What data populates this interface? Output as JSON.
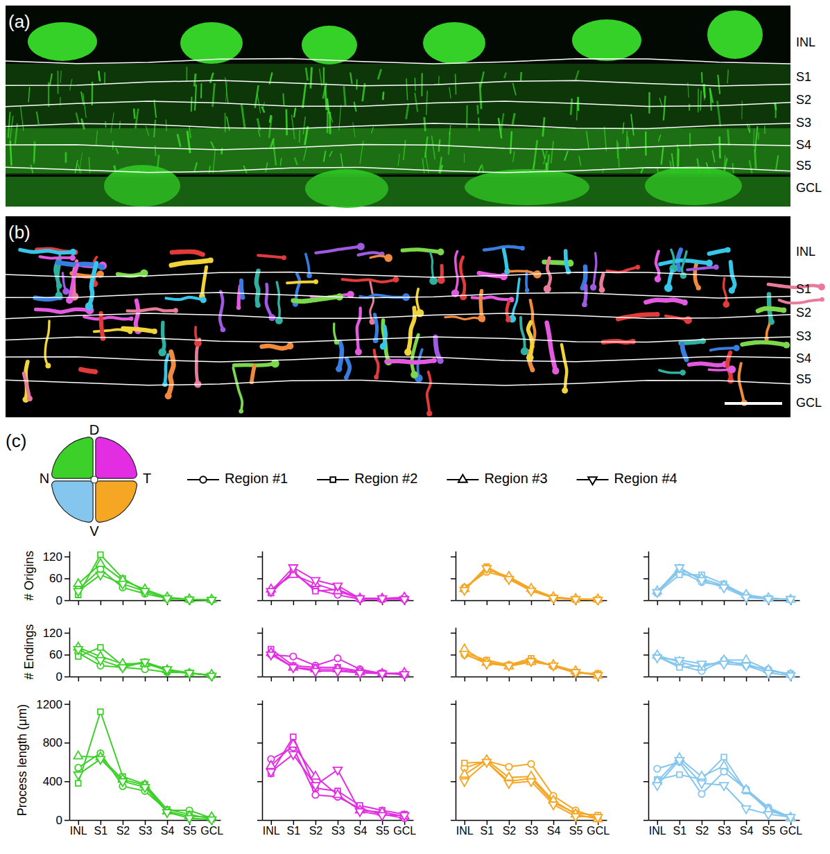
{
  "figure": {
    "panel_labels": [
      "(a)",
      "(b)",
      "(c)"
    ],
    "layers": [
      "INL",
      "S1",
      "S2",
      "S3",
      "S4",
      "S5",
      "GCL"
    ],
    "retina_labels": [
      "D",
      "N",
      "T",
      "V"
    ]
  },
  "chart_data": [
    {
      "type": "line",
      "color": "#3ed02a",
      "categories": [
        "INL",
        "S1",
        "S2",
        "S3",
        "S4",
        "S5",
        "GCL"
      ],
      "ylabel": "# Origins",
      "ylim": [
        0,
        135
      ],
      "yticks": [
        0,
        60,
        120
      ],
      "tick_labels": "y",
      "series": [
        {
          "name": "Region #1",
          "marker": "circle",
          "values": [
            30,
            85,
            35,
            18,
            5,
            2,
            1
          ]
        },
        {
          "name": "Region #2",
          "marker": "square",
          "values": [
            15,
            125,
            60,
            25,
            5,
            2,
            1
          ]
        },
        {
          "name": "Region #3",
          "marker": "triangle-up",
          "values": [
            45,
            100,
            55,
            30,
            8,
            3,
            2
          ]
        },
        {
          "name": "Region #4",
          "marker": "triangle-down",
          "values": [
            25,
            70,
            45,
            25,
            5,
            2,
            1
          ]
        }
      ]
    },
    {
      "type": "line",
      "color": "#e22de2",
      "categories": [
        "INL",
        "S1",
        "S2",
        "S3",
        "S4",
        "S5",
        "GCL"
      ],
      "ylim": [
        0,
        135
      ],
      "yticks": [
        0,
        60,
        120
      ],
      "tick_labels": false,
      "series": [
        {
          "marker": "circle",
          "values": [
            25,
            75,
            30,
            15,
            3,
            3,
            3
          ]
        },
        {
          "marker": "square",
          "values": [
            20,
            80,
            25,
            30,
            5,
            3,
            5
          ]
        },
        {
          "marker": "triangle-up",
          "values": [
            30,
            70,
            45,
            25,
            5,
            5,
            8
          ]
        },
        {
          "marker": "triangle-down",
          "values": [
            25,
            90,
            55,
            40,
            5,
            5,
            3
          ]
        }
      ]
    },
    {
      "type": "line",
      "color": "#f5a623",
      "categories": [
        "INL",
        "S1",
        "S2",
        "S3",
        "S4",
        "S5",
        "GCL"
      ],
      "ylim": [
        0,
        135
      ],
      "yticks": [
        0,
        60,
        120
      ],
      "tick_labels": false,
      "series": [
        {
          "marker": "circle",
          "values": [
            35,
            78,
            62,
            30,
            8,
            3,
            2
          ]
        },
        {
          "marker": "square",
          "values": [
            30,
            92,
            60,
            28,
            7,
            2,
            2
          ]
        },
        {
          "marker": "triangle-up",
          "values": [
            32,
            85,
            65,
            32,
            9,
            4,
            3
          ]
        },
        {
          "marker": "triangle-down",
          "values": [
            28,
            88,
            58,
            26,
            6,
            3,
            1
          ]
        }
      ]
    },
    {
      "type": "line",
      "color": "#84c6ee",
      "categories": [
        "INL",
        "S1",
        "S2",
        "S3",
        "S4",
        "S5",
        "GCL"
      ],
      "ylim": [
        0,
        135
      ],
      "yticks": [
        0,
        60,
        120
      ],
      "tick_labels": false,
      "series": [
        {
          "marker": "circle",
          "values": [
            22,
            80,
            50,
            40,
            10,
            5,
            3
          ]
        },
        {
          "marker": "square",
          "values": [
            20,
            70,
            70,
            45,
            12,
            5,
            3
          ]
        },
        {
          "marker": "triangle-up",
          "values": [
            25,
            85,
            60,
            40,
            15,
            6,
            2
          ]
        },
        {
          "marker": "triangle-down",
          "values": [
            22,
            90,
            55,
            35,
            8,
            4,
            3
          ]
        }
      ]
    },
    {
      "type": "line",
      "color": "#3ed02a",
      "categories": [
        "INL",
        "S1",
        "S2",
        "S3",
        "S4",
        "S5",
        "GCL"
      ],
      "ylabel": "# Endings",
      "ylim": [
        0,
        135
      ],
      "yticks": [
        0,
        60,
        120
      ],
      "tick_labels": "y",
      "series": [
        {
          "marker": "circle",
          "values": [
            65,
            30,
            25,
            20,
            12,
            10,
            3
          ]
        },
        {
          "marker": "square",
          "values": [
            55,
            80,
            30,
            40,
            15,
            10,
            3
          ]
        },
        {
          "marker": "triangle-up",
          "values": [
            80,
            55,
            35,
            35,
            18,
            8,
            5
          ]
        },
        {
          "marker": "triangle-down",
          "values": [
            75,
            45,
            25,
            40,
            20,
            10,
            2
          ]
        }
      ]
    },
    {
      "type": "line",
      "color": "#e22de2",
      "categories": [
        "INL",
        "S1",
        "S2",
        "S3",
        "S4",
        "S5",
        "GCL"
      ],
      "ylim": [
        0,
        135
      ],
      "yticks": [
        0,
        60,
        120
      ],
      "tick_labels": false,
      "series": [
        {
          "marker": "circle",
          "values": [
            60,
            55,
            30,
            50,
            20,
            8,
            8
          ]
        },
        {
          "marker": "square",
          "values": [
            75,
            30,
            25,
            25,
            15,
            10,
            5
          ]
        },
        {
          "marker": "triangle-up",
          "values": [
            65,
            25,
            20,
            20,
            12,
            8,
            10
          ]
        },
        {
          "marker": "triangle-down",
          "values": [
            60,
            25,
            15,
            15,
            10,
            8,
            6
          ]
        }
      ]
    },
    {
      "type": "line",
      "color": "#f5a623",
      "categories": [
        "INL",
        "S1",
        "S2",
        "S3",
        "S4",
        "S5",
        "GCL"
      ],
      "ylim": [
        0,
        135
      ],
      "yticks": [
        0,
        60,
        120
      ],
      "tick_labels": false,
      "series": [
        {
          "marker": "circle",
          "values": [
            60,
            40,
            30,
            45,
            30,
            12,
            5
          ]
        },
        {
          "marker": "square",
          "values": [
            65,
            45,
            32,
            50,
            28,
            10,
            8
          ]
        },
        {
          "marker": "triangle-up",
          "values": [
            75,
            38,
            28,
            40,
            32,
            15,
            3
          ]
        },
        {
          "marker": "triangle-down",
          "values": [
            62,
            35,
            30,
            42,
            30,
            12,
            4
          ]
        }
      ]
    },
    {
      "type": "line",
      "color": "#84c6ee",
      "categories": [
        "INL",
        "S1",
        "S2",
        "S3",
        "S4",
        "S5",
        "GCL"
      ],
      "ylim": [
        0,
        135
      ],
      "yticks": [
        0,
        60,
        120
      ],
      "tick_labels": false,
      "series": [
        {
          "marker": "circle",
          "values": [
            55,
            30,
            15,
            45,
            30,
            20,
            5
          ]
        },
        {
          "marker": "square",
          "values": [
            55,
            25,
            30,
            40,
            35,
            15,
            8
          ]
        },
        {
          "marker": "triangle-up",
          "values": [
            58,
            40,
            25,
            45,
            45,
            18,
            5
          ]
        },
        {
          "marker": "triangle-down",
          "values": [
            52,
            45,
            35,
            35,
            30,
            10,
            3
          ]
        }
      ]
    },
    {
      "type": "line",
      "color": "#3ed02a",
      "categories": [
        "INL",
        "S1",
        "S2",
        "S3",
        "S4",
        "S5",
        "GCL"
      ],
      "ylabel": "Process length (μm)",
      "ylim": [
        0,
        1240
      ],
      "yticks": [
        0,
        400,
        800,
        1200
      ],
      "tick_labels": true,
      "series": [
        {
          "marker": "circle",
          "values": [
            540,
            690,
            350,
            300,
            100,
            100,
            20
          ]
        },
        {
          "marker": "square",
          "values": [
            380,
            1120,
            450,
            370,
            110,
            60,
            10
          ]
        },
        {
          "marker": "triangle-up",
          "values": [
            660,
            650,
            420,
            360,
            90,
            40,
            30
          ]
        },
        {
          "marker": "triangle-down",
          "values": [
            470,
            630,
            400,
            340,
            80,
            20,
            5
          ]
        }
      ]
    },
    {
      "type": "line",
      "color": "#e22de2",
      "categories": [
        "INL",
        "S1",
        "S2",
        "S3",
        "S4",
        "S5",
        "GCL"
      ],
      "ylim": [
        0,
        1240
      ],
      "yticks": [
        0,
        400,
        800,
        1200
      ],
      "tick_labels": "x",
      "series": [
        {
          "marker": "circle",
          "values": [
            630,
            750,
            260,
            240,
            120,
            60,
            20
          ]
        },
        {
          "marker": "square",
          "values": [
            480,
            860,
            330,
            300,
            150,
            100,
            60
          ]
        },
        {
          "marker": "triangle-up",
          "values": [
            560,
            780,
            450,
            260,
            100,
            80,
            40
          ]
        },
        {
          "marker": "triangle-down",
          "values": [
            500,
            680,
            360,
            520,
            90,
            50,
            50
          ]
        }
      ]
    },
    {
      "type": "line",
      "color": "#f5a623",
      "categories": [
        "INL",
        "S1",
        "S2",
        "S3",
        "S4",
        "S5",
        "GCL"
      ],
      "ylim": [
        0,
        1240
      ],
      "yticks": [
        0,
        400,
        800,
        1200
      ],
      "tick_labels": "x",
      "series": [
        {
          "marker": "circle",
          "values": [
            540,
            610,
            550,
            580,
            250,
            100,
            20
          ]
        },
        {
          "marker": "square",
          "values": [
            590,
            600,
            400,
            430,
            180,
            70,
            50
          ]
        },
        {
          "marker": "triangle-up",
          "values": [
            470,
            620,
            440,
            450,
            200,
            60,
            10
          ]
        },
        {
          "marker": "triangle-down",
          "values": [
            400,
            600,
            380,
            400,
            160,
            40,
            30
          ]
        }
      ]
    },
    {
      "type": "line",
      "color": "#84c6ee",
      "categories": [
        "INL",
        "S1",
        "S2",
        "S3",
        "S4",
        "S5",
        "GCL"
      ],
      "ylim": [
        0,
        1240
      ],
      "yticks": [
        0,
        400,
        800,
        1200
      ],
      "tick_labels": "x",
      "series": [
        {
          "marker": "circle",
          "values": [
            530,
            600,
            270,
            500,
            320,
            130,
            30
          ]
        },
        {
          "marker": "square",
          "values": [
            420,
            470,
            420,
            650,
            300,
            120,
            20
          ]
        },
        {
          "marker": "triangle-up",
          "values": [
            400,
            640,
            450,
            560,
            310,
            100,
            25
          ]
        },
        {
          "marker": "triangle-down",
          "values": [
            360,
            620,
            380,
            360,
            120,
            60,
            30
          ]
        }
      ]
    }
  ]
}
